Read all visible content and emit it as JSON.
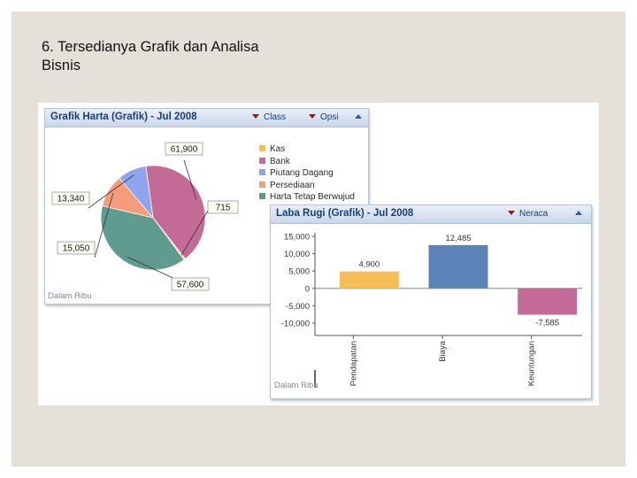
{
  "slide": {
    "title_line1": "6. Tersedianya Grafik dan Analisa",
    "title_line2": "Bisnis"
  },
  "pie_panel": {
    "title": "Grafik Harta (Grafik) - Jul 2008",
    "class_menu": "Class",
    "options_menu": "Opsi",
    "footnote": "Dalam Ribu",
    "icons": {
      "dropdown": "triangle-down-icon",
      "collapse": "triangle-up-icon"
    }
  },
  "bar_panel": {
    "title": "Laba Rugi (Grafik) - Jul 2008",
    "menu": "Neraca",
    "footnote": "Dalam Ribu",
    "icons": {
      "dropdown": "triangle-down-icon",
      "collapse": "triangle-up-icon"
    }
  },
  "chart_data": [
    {
      "type": "pie",
      "title": "Grafik Harta (Grafik) - Jul 2008",
      "labels": [
        "Kas",
        "Bank",
        "Piutang Dagang",
        "Persediaan",
        "Harta Tetap Berwujud"
      ],
      "values": [
        715,
        61900,
        13340,
        15050,
        57600
      ],
      "value_labels": [
        "715",
        "61,900",
        "13,340",
        "15,050",
        "57,600"
      ],
      "colors": [
        "#f7bd56",
        "#c36a97",
        "#8fa4ec",
        "#f59c7b",
        "#5f9b8e"
      ],
      "legend_position": "right"
    },
    {
      "type": "bar",
      "title": "Laba Rugi (Grafik) - Jul 2008",
      "categories": [
        "Pendapatan",
        "Biaya",
        "Keuntungan"
      ],
      "values": [
        4900,
        12485,
        -7585
      ],
      "value_labels": [
        "4,900",
        "12,485",
        "-7,585"
      ],
      "colors": [
        "#f7bd56",
        "#5c82b8",
        "#c36a97"
      ],
      "ylim": [
        -10000,
        15000
      ],
      "yticks": [
        15000,
        10000,
        5000,
        0,
        -5000,
        -10000
      ],
      "ytick_labels": [
        "15,000",
        "10,000",
        "5,000",
        "0",
        "-5,000",
        "-10,000"
      ],
      "grid": false
    }
  ]
}
